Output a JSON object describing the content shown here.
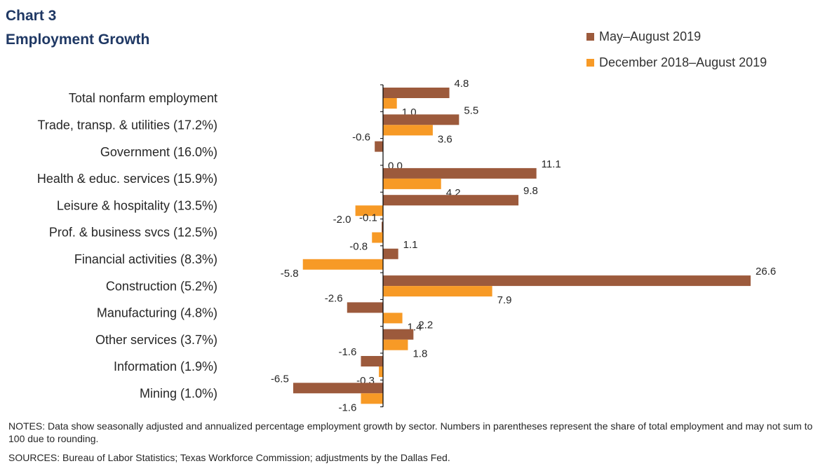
{
  "header": {
    "chart_number": "Chart 3",
    "title": "Employment Growth"
  },
  "colors": {
    "series1": "#9c5a3c",
    "series2": "#f79a26",
    "axis": "#000000",
    "title": "#1f3864"
  },
  "footer": {
    "notes": "NOTES: Data show seasonally adjusted and annualized percentage employment growth by sector. Numbers in parentheses represent the share of total employment and may not sum to 100 due to rounding.",
    "sources": "SOURCES: Bureau of Labor Statistics; Texas Workforce Commission; adjustments by the Dallas Fed."
  },
  "chart_data": {
    "type": "bar",
    "orientation": "horizontal",
    "title": "Employment Growth",
    "legend_position": "top-right",
    "grid": false,
    "categories": [
      "Total nonfarm employment",
      "Trade, transp. & utilities (17.2%)",
      "Government (16.0%)",
      "Health & educ. services (15.9%)",
      "Leisure & hospitality (13.5%)",
      "Prof. & business svcs (12.5%)",
      "Financial activities (8.3%)",
      "Construction (5.2%)",
      "Manufacturing (4.8%)",
      "Other services (3.7%)",
      "Information (1.9%)",
      "Mining (1.0%)"
    ],
    "series": [
      {
        "name": "May–August 2019",
        "values": [
          4.8,
          5.5,
          -0.6,
          11.1,
          9.8,
          -0.1,
          1.1,
          26.6,
          -2.6,
          2.2,
          -1.6,
          -6.5
        ]
      },
      {
        "name": "December 2018–August 2019",
        "values": [
          1.0,
          3.6,
          0.0,
          4.2,
          -2.0,
          -0.8,
          -5.8,
          7.9,
          1.4,
          1.8,
          -0.3,
          -1.6
        ]
      }
    ],
    "xlim": [
      -8,
      27
    ]
  }
}
